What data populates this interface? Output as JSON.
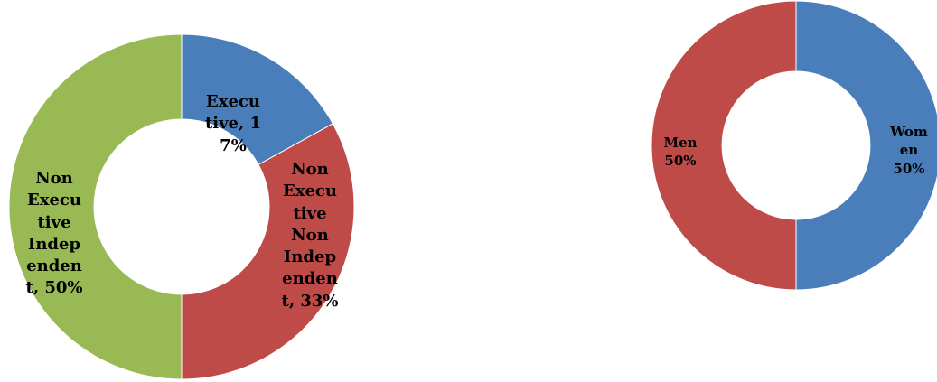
{
  "chart_data": [
    {
      "type": "pie",
      "donut": true,
      "title": "",
      "slices": [
        {
          "label": "Execu\ntive, 1\n7%",
          "value": 17,
          "color": "#4a7ebb"
        },
        {
          "label": "Non\nExecu\ntive\nNon\nIndep\nenden\nt, 33%",
          "value": 33,
          "color": "#be4b48"
        },
        {
          "label": "Non\nExecu\ntive\nIndep\nenden\nt, 50%",
          "value": 50,
          "color": "#98b954"
        }
      ]
    },
    {
      "type": "pie",
      "donut": true,
      "title": "",
      "slices": [
        {
          "label": "Wom\nen\n50%",
          "value": 50,
          "color": "#4a7ebb"
        },
        {
          "label": "Men\n50%",
          "value": 50,
          "color": "#be4b48"
        }
      ]
    }
  ]
}
